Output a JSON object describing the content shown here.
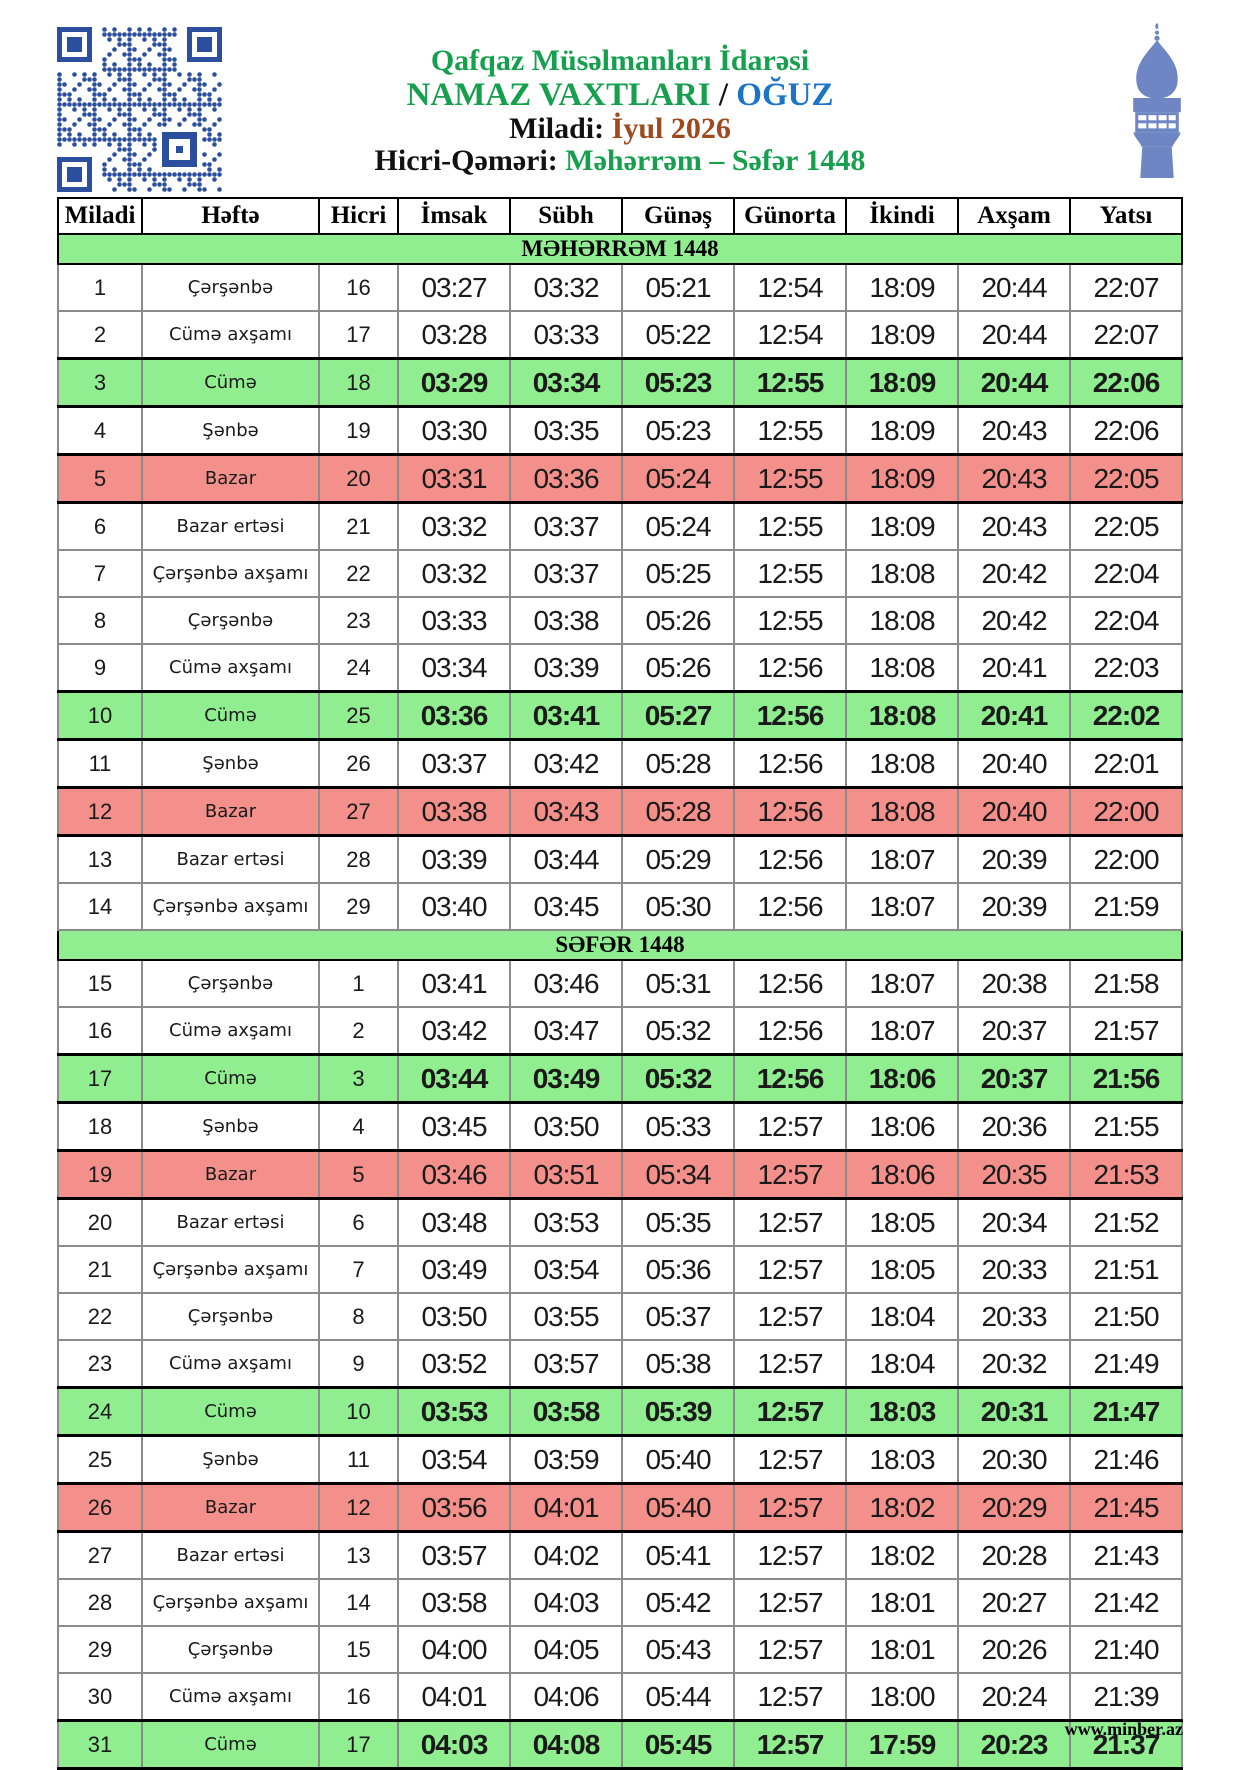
{
  "header": {
    "org": "Qafqaz Müsəlmanları İdarəsi",
    "title": "NAMAZ VAXTLARI",
    "separator": " / ",
    "city": "OĞUZ",
    "miladi_label": "Miladi: ",
    "miladi_value": "İyul 2026",
    "hicri_label": "Hicri-Qəməri: ",
    "hicri_value": "Məhərrəm – Səfər 1448",
    "icons": [
      "qr-code-icon",
      "minaret-icon"
    ]
  },
  "colors": {
    "title_green": "#16A04E",
    "city_blue": "#1B74C5",
    "month_brown": "#9C4A1E",
    "row_green": "#90EE90",
    "row_pink": "#F4908C",
    "qr_blue": "#2B4F9E",
    "minaret_blue": "#6E86C3",
    "border_gray": "#8c8c8c"
  },
  "table": {
    "columns": [
      "Miladi",
      "Həftə",
      "Hicri",
      "İmsak",
      "Sübh",
      "Günəş",
      "Günorta",
      "İkindi",
      "Axşam",
      "Yatsı"
    ],
    "sections": [
      {
        "title": "MƏHƏRRƏM 1448",
        "rows": [
          {
            "miladi": 1,
            "hefte": "Çərşənbə",
            "hicri": 16,
            "times": [
              "03:27",
              "03:32",
              "05:21",
              "12:54",
              "18:09",
              "20:44",
              "22:07"
            ],
            "highlight": "none"
          },
          {
            "miladi": 2,
            "hefte": "Cümə axşamı",
            "hicri": 17,
            "times": [
              "03:28",
              "03:33",
              "05:22",
              "12:54",
              "18:09",
              "20:44",
              "22:07"
            ],
            "highlight": "none"
          },
          {
            "miladi": 3,
            "hefte": "Cümə",
            "hicri": 18,
            "times": [
              "03:29",
              "03:34",
              "05:23",
              "12:55",
              "18:09",
              "20:44",
              "22:06"
            ],
            "highlight": "friday"
          },
          {
            "miladi": 4,
            "hefte": "Şənbə",
            "hicri": 19,
            "times": [
              "03:30",
              "03:35",
              "05:23",
              "12:55",
              "18:09",
              "20:43",
              "22:06"
            ],
            "highlight": "none"
          },
          {
            "miladi": 5,
            "hefte": "Bazar",
            "hicri": 20,
            "times": [
              "03:31",
              "03:36",
              "05:24",
              "12:55",
              "18:09",
              "20:43",
              "22:05"
            ],
            "highlight": "sunday"
          },
          {
            "miladi": 6,
            "hefte": "Bazar ertəsi",
            "hicri": 21,
            "times": [
              "03:32",
              "03:37",
              "05:24",
              "12:55",
              "18:09",
              "20:43",
              "22:05"
            ],
            "highlight": "none"
          },
          {
            "miladi": 7,
            "hefte": "Çərşənbə axşamı",
            "hicri": 22,
            "times": [
              "03:32",
              "03:37",
              "05:25",
              "12:55",
              "18:08",
              "20:42",
              "22:04"
            ],
            "highlight": "none"
          },
          {
            "miladi": 8,
            "hefte": "Çərşənbə",
            "hicri": 23,
            "times": [
              "03:33",
              "03:38",
              "05:26",
              "12:55",
              "18:08",
              "20:42",
              "22:04"
            ],
            "highlight": "none"
          },
          {
            "miladi": 9,
            "hefte": "Cümə axşamı",
            "hicri": 24,
            "times": [
              "03:34",
              "03:39",
              "05:26",
              "12:56",
              "18:08",
              "20:41",
              "22:03"
            ],
            "highlight": "none"
          },
          {
            "miladi": 10,
            "hefte": "Cümə",
            "hicri": 25,
            "times": [
              "03:36",
              "03:41",
              "05:27",
              "12:56",
              "18:08",
              "20:41",
              "22:02"
            ],
            "highlight": "friday"
          },
          {
            "miladi": 11,
            "hefte": "Şənbə",
            "hicri": 26,
            "times": [
              "03:37",
              "03:42",
              "05:28",
              "12:56",
              "18:08",
              "20:40",
              "22:01"
            ],
            "highlight": "none"
          },
          {
            "miladi": 12,
            "hefte": "Bazar",
            "hicri": 27,
            "times": [
              "03:38",
              "03:43",
              "05:28",
              "12:56",
              "18:08",
              "20:40",
              "22:00"
            ],
            "highlight": "sunday"
          },
          {
            "miladi": 13,
            "hefte": "Bazar ertəsi",
            "hicri": 28,
            "times": [
              "03:39",
              "03:44",
              "05:29",
              "12:56",
              "18:07",
              "20:39",
              "22:00"
            ],
            "highlight": "none"
          },
          {
            "miladi": 14,
            "hefte": "Çərşənbə axşamı",
            "hicri": 29,
            "times": [
              "03:40",
              "03:45",
              "05:30",
              "12:56",
              "18:07",
              "20:39",
              "21:59"
            ],
            "highlight": "none"
          }
        ]
      },
      {
        "title": "SƏFƏR 1448",
        "rows": [
          {
            "miladi": 15,
            "hefte": "Çərşənbə",
            "hicri": 1,
            "times": [
              "03:41",
              "03:46",
              "05:31",
              "12:56",
              "18:07",
              "20:38",
              "21:58"
            ],
            "highlight": "none"
          },
          {
            "miladi": 16,
            "hefte": "Cümə axşamı",
            "hicri": 2,
            "times": [
              "03:42",
              "03:47",
              "05:32",
              "12:56",
              "18:07",
              "20:37",
              "21:57"
            ],
            "highlight": "none"
          },
          {
            "miladi": 17,
            "hefte": "Cümə",
            "hicri": 3,
            "times": [
              "03:44",
              "03:49",
              "05:32",
              "12:56",
              "18:06",
              "20:37",
              "21:56"
            ],
            "highlight": "friday"
          },
          {
            "miladi": 18,
            "hefte": "Şənbə",
            "hicri": 4,
            "times": [
              "03:45",
              "03:50",
              "05:33",
              "12:57",
              "18:06",
              "20:36",
              "21:55"
            ],
            "highlight": "none"
          },
          {
            "miladi": 19,
            "hefte": "Bazar",
            "hicri": 5,
            "times": [
              "03:46",
              "03:51",
              "05:34",
              "12:57",
              "18:06",
              "20:35",
              "21:53"
            ],
            "highlight": "sunday"
          },
          {
            "miladi": 20,
            "hefte": "Bazar ertəsi",
            "hicri": 6,
            "times": [
              "03:48",
              "03:53",
              "05:35",
              "12:57",
              "18:05",
              "20:34",
              "21:52"
            ],
            "highlight": "none"
          },
          {
            "miladi": 21,
            "hefte": "Çərşənbə axşamı",
            "hicri": 7,
            "times": [
              "03:49",
              "03:54",
              "05:36",
              "12:57",
              "18:05",
              "20:33",
              "21:51"
            ],
            "highlight": "none"
          },
          {
            "miladi": 22,
            "hefte": "Çərşənbə",
            "hicri": 8,
            "times": [
              "03:50",
              "03:55",
              "05:37",
              "12:57",
              "18:04",
              "20:33",
              "21:50"
            ],
            "highlight": "none"
          },
          {
            "miladi": 23,
            "hefte": "Cümə axşamı",
            "hicri": 9,
            "times": [
              "03:52",
              "03:57",
              "05:38",
              "12:57",
              "18:04",
              "20:32",
              "21:49"
            ],
            "highlight": "none"
          },
          {
            "miladi": 24,
            "hefte": "Cümə",
            "hicri": 10,
            "times": [
              "03:53",
              "03:58",
              "05:39",
              "12:57",
              "18:03",
              "20:31",
              "21:47"
            ],
            "highlight": "friday"
          },
          {
            "miladi": 25,
            "hefte": "Şənbə",
            "hicri": 11,
            "times": [
              "03:54",
              "03:59",
              "05:40",
              "12:57",
              "18:03",
              "20:30",
              "21:46"
            ],
            "highlight": "none"
          },
          {
            "miladi": 26,
            "hefte": "Bazar",
            "hicri": 12,
            "times": [
              "03:56",
              "04:01",
              "05:40",
              "12:57",
              "18:02",
              "20:29",
              "21:45"
            ],
            "highlight": "sunday"
          },
          {
            "miladi": 27,
            "hefte": "Bazar ertəsi",
            "hicri": 13,
            "times": [
              "03:57",
              "04:02",
              "05:41",
              "12:57",
              "18:02",
              "20:28",
              "21:43"
            ],
            "highlight": "none"
          },
          {
            "miladi": 28,
            "hefte": "Çərşənbə axşamı",
            "hicri": 14,
            "times": [
              "03:58",
              "04:03",
              "05:42",
              "12:57",
              "18:01",
              "20:27",
              "21:42"
            ],
            "highlight": "none"
          },
          {
            "miladi": 29,
            "hefte": "Çərşənbə",
            "hicri": 15,
            "times": [
              "04:00",
              "04:05",
              "05:43",
              "12:57",
              "18:01",
              "20:26",
              "21:40"
            ],
            "highlight": "none"
          },
          {
            "miladi": 30,
            "hefte": "Cümə axşamı",
            "hicri": 16,
            "times": [
              "04:01",
              "04:06",
              "05:44",
              "12:57",
              "18:00",
              "20:24",
              "21:39"
            ],
            "highlight": "none"
          },
          {
            "miladi": 31,
            "hefte": "Cümə",
            "hicri": 17,
            "times": [
              "04:03",
              "04:08",
              "05:45",
              "12:57",
              "17:59",
              "20:23",
              "21:37"
            ],
            "highlight": "friday"
          }
        ]
      }
    ]
  },
  "footer": {
    "website": "www.minber.az"
  }
}
